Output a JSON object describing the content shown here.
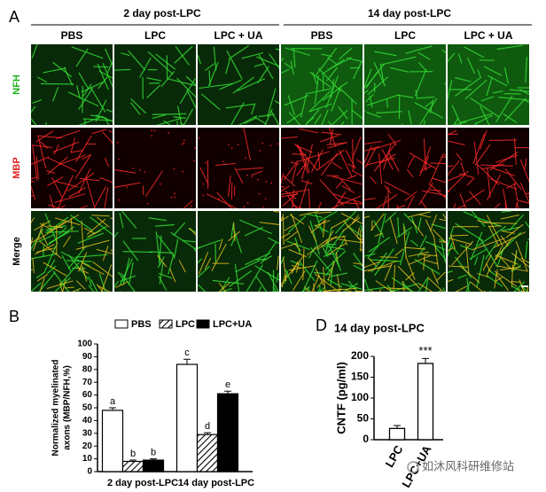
{
  "panel_a": {
    "label": "A",
    "groups": [
      "2 day post-LPC",
      "14 day post-LPC"
    ],
    "columns": [
      "PBS",
      "LPC",
      "LPC + UA",
      "PBS",
      "LPC",
      "LPC + UA"
    ],
    "rows": [
      "NFH",
      "MBP",
      "Merge"
    ]
  },
  "chart_data": [
    {
      "type": "bar",
      "panel": "B",
      "ylabel": [
        "Normalized myelinated",
        "axons (MBP/NFH,%)"
      ],
      "categories": [
        "2 day post-LPC",
        "14 day post-LPC"
      ],
      "series": [
        {
          "name": "PBS",
          "color": "#ffffff",
          "values": [
            48,
            84
          ],
          "errors": [
            2,
            4
          ],
          "letters": [
            "a",
            "c"
          ]
        },
        {
          "name": "LPC",
          "color": "#ffffff",
          "hatch": true,
          "values": [
            8,
            29
          ],
          "errors": [
            1,
            1.5
          ],
          "letters": [
            "b",
            "d"
          ]
        },
        {
          "name": "LPC+UA",
          "color": "#000000",
          "values": [
            9,
            61
          ],
          "errors": [
            1,
            2
          ],
          "letters": [
            "b",
            "e"
          ]
        }
      ],
      "ylim": [
        0,
        100
      ],
      "yticks": [
        0,
        10,
        20,
        30,
        40,
        50,
        60,
        70,
        80,
        90,
        100
      ]
    },
    {
      "type": "bar",
      "panel": "D",
      "title": "14 day post-LPC",
      "ylabel": "CNTF (pg/ml)",
      "categories": [
        "LPC",
        "LPC+UA"
      ],
      "values": [
        27,
        183
      ],
      "errors": [
        7,
        12
      ],
      "annotations": [
        null,
        "***"
      ],
      "color": "#ffffff",
      "ylim": [
        0,
        200
      ],
      "yticks": [
        0,
        50,
        100,
        150,
        200
      ]
    }
  ],
  "watermark": "如沐风科研维修站"
}
